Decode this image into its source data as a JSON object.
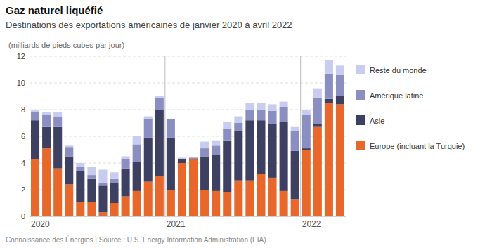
{
  "chart_data": {
    "type": "bar",
    "stacked": true,
    "title": "Gaz naturel liquéfié",
    "subtitle": "Destinations des exportations américaines de janvier 2020 à avril 2022",
    "y_label": "(milliards de pieds cubes par jour)",
    "source": "Connaissance des Énergies | Source : U.S. Energy Information Administration (EIA).",
    "categories": [
      "2020",
      null,
      null,
      null,
      null,
      null,
      null,
      null,
      null,
      null,
      null,
      null,
      "2021",
      null,
      null,
      null,
      null,
      null,
      null,
      null,
      null,
      null,
      null,
      null,
      "2022",
      null,
      null,
      null
    ],
    "series": [
      {
        "name": "Europe (incluant la Turquie)",
        "color": "#E8672B",
        "values": [
          4.3,
          5.1,
          3.6,
          2.4,
          1.1,
          1.1,
          0.3,
          1.0,
          1.5,
          1.9,
          2.6,
          3.0,
          2.0,
          4.0,
          4.3,
          2.0,
          1.9,
          1.8,
          2.7,
          2.7,
          3.2,
          2.9,
          1.9,
          1.3,
          5.0,
          6.7,
          8.5,
          8.4
        ]
      },
      {
        "name": "Asie",
        "color": "#3D4060",
        "values": [
          2.9,
          1.6,
          3.1,
          2.1,
          2.3,
          1.7,
          2.0,
          1.5,
          2.1,
          2.2,
          3.3,
          5.0,
          3.9,
          0.3,
          0.0,
          2.5,
          2.7,
          3.9,
          3.7,
          4.5,
          4.0,
          4.0,
          5.2,
          3.6,
          0.1,
          0.2,
          0.3,
          0.6
        ]
      },
      {
        "name": "Amérique latine",
        "color": "#8B8EC0",
        "values": [
          0.6,
          0.9,
          0.8,
          0.7,
          0.3,
          0.3,
          0.2,
          0.3,
          0.7,
          1.3,
          1.4,
          0.9,
          1.4,
          0.0,
          0.1,
          0.6,
          0.7,
          0.9,
          0.6,
          0.8,
          0.8,
          1.0,
          1.1,
          1.5,
          2.5,
          2.0,
          1.9,
          1.6
        ]
      },
      {
        "name": "Reste du monde",
        "color": "#C8CCEE",
        "values": [
          0.2,
          0.2,
          0.3,
          0.1,
          0.3,
          0.6,
          1.0,
          0.5,
          0.2,
          0.6,
          0.2,
          0.1,
          0.0,
          0.1,
          0.0,
          0.5,
          0.4,
          0.5,
          0.5,
          0.5,
          0.5,
          0.5,
          0.4,
          0.3,
          0.4,
          0.7,
          1.0,
          0.7
        ]
      }
    ],
    "ylim": [
      0,
      12
    ],
    "yticks": [
      0,
      2,
      4,
      6,
      8,
      10,
      12
    ],
    "grid": true,
    "legend": "right"
  }
}
